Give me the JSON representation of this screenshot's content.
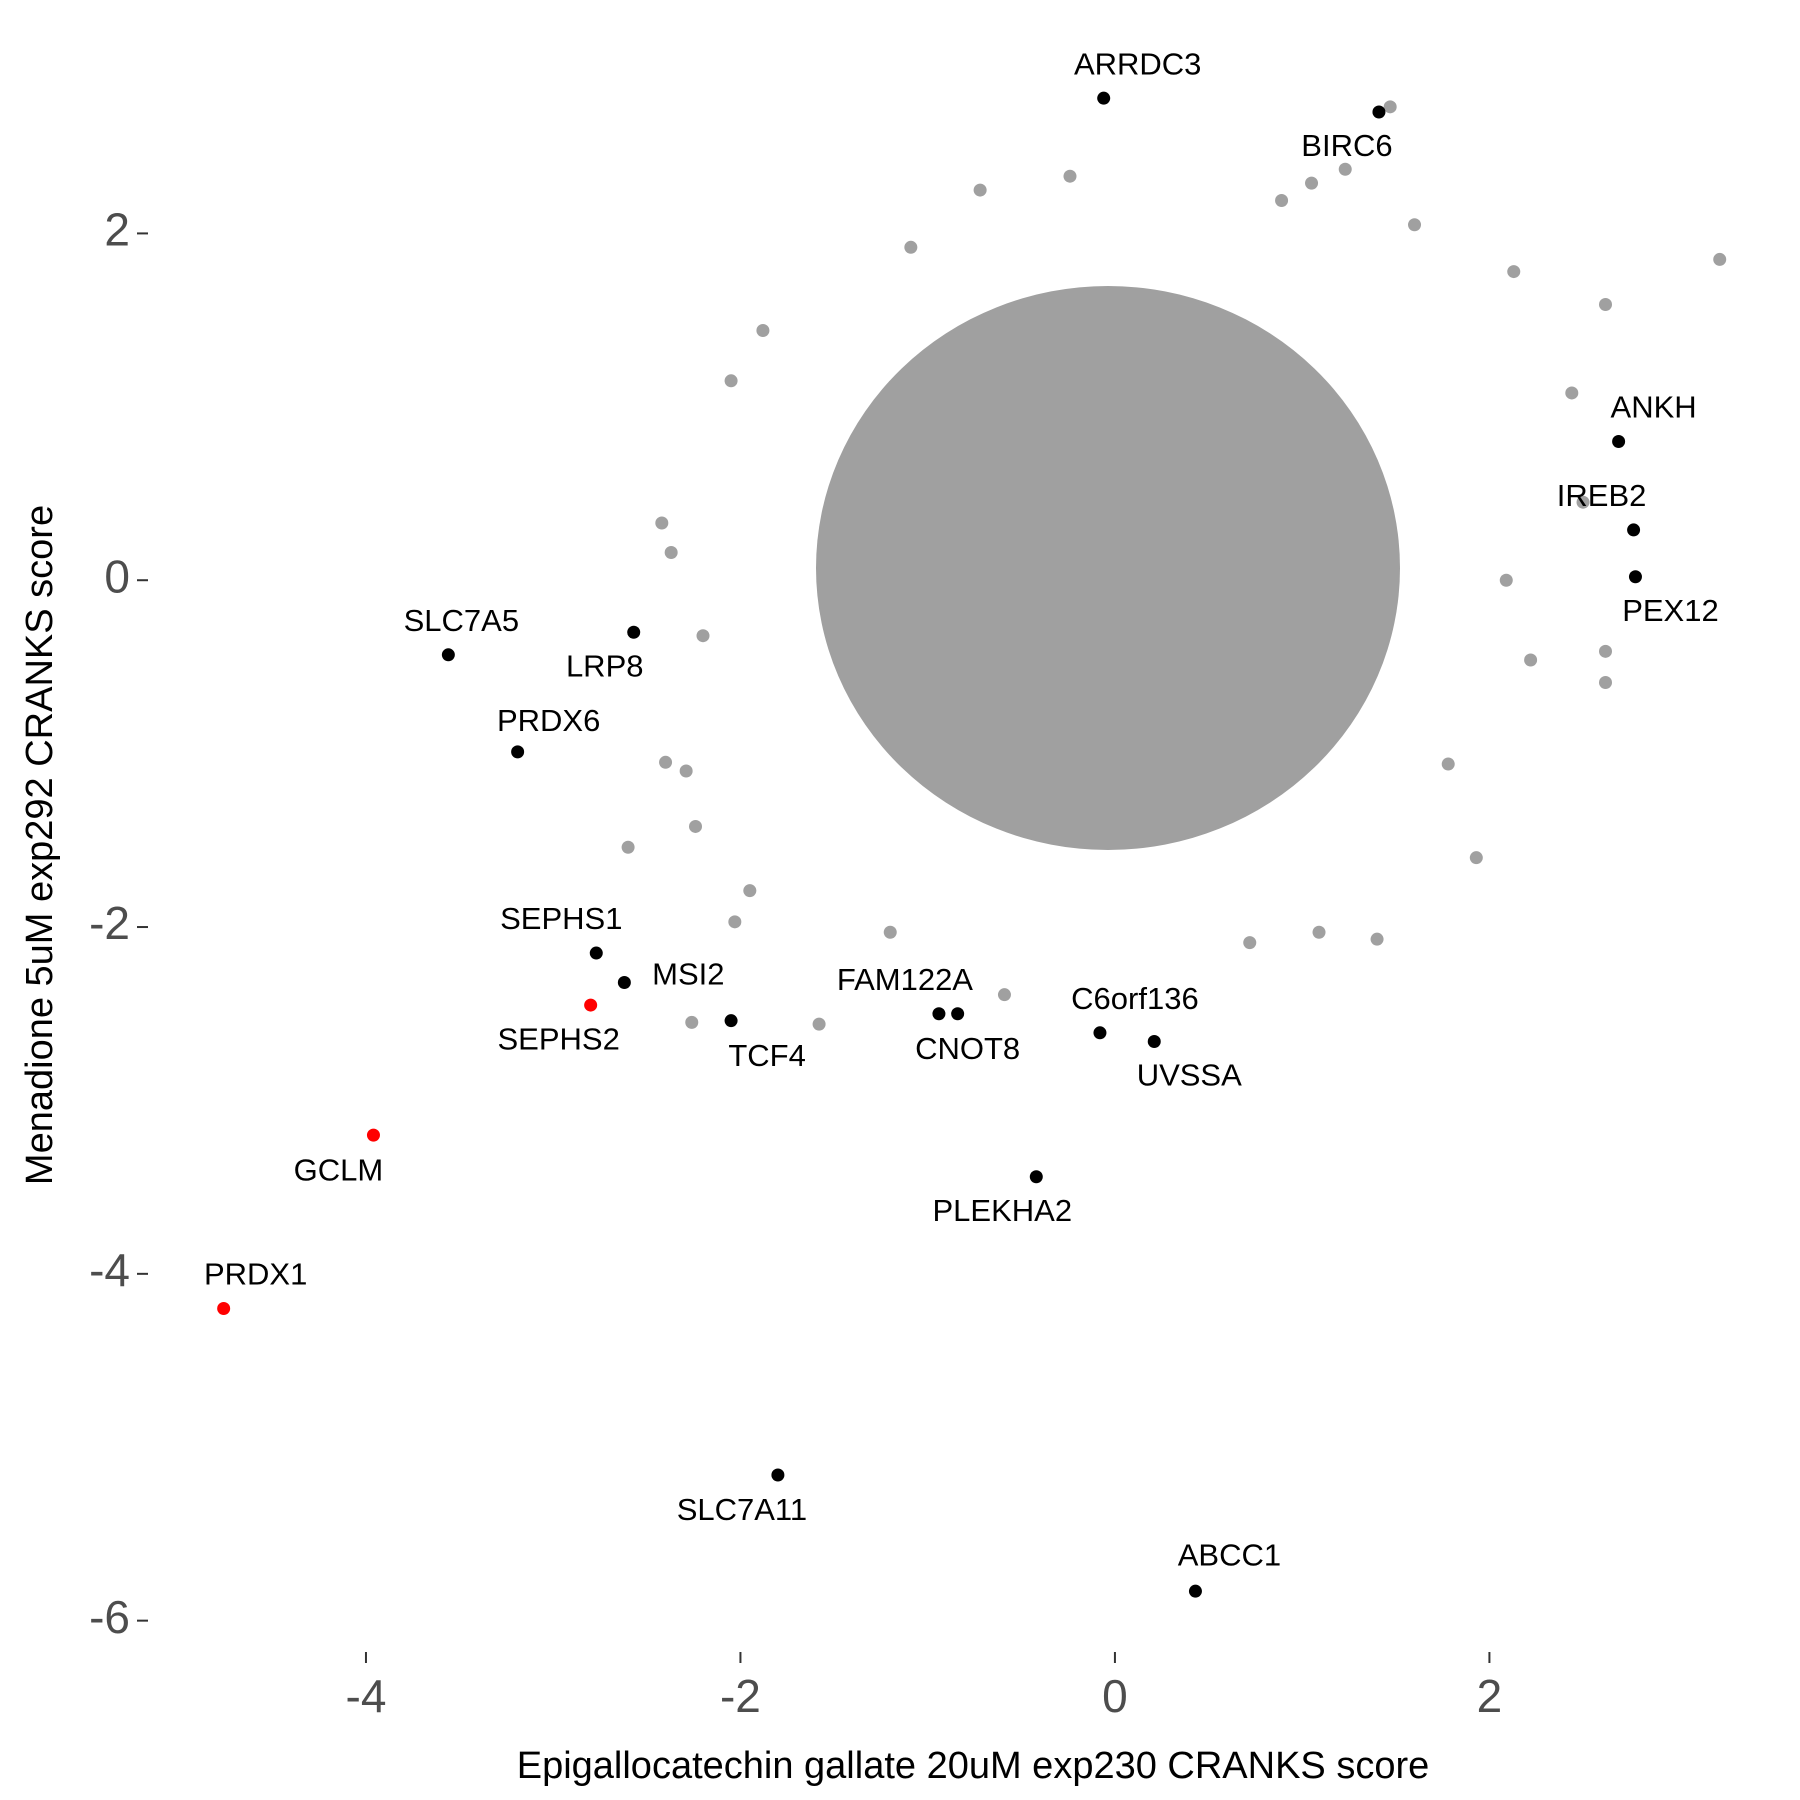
{
  "chart_data": {
    "type": "scatter",
    "x_label": "Epigallocatechin gallate 20uM exp230 CRANKS score",
    "y_label": "Menadione 5uM exp292 CRANKS score",
    "xlim": [
      -5.1,
      3.6
    ],
    "ylim": [
      -6.25,
      3.15
    ],
    "xticks": [
      -4,
      -2,
      0,
      2
    ],
    "yticks": [
      -6,
      -4,
      -2,
      0,
      2
    ],
    "series": [
      {
        "color": "#a0a0a0",
        "x": [
          3.23,
          2.62,
          2.44,
          2.62,
          2.62,
          2.22,
          1.93,
          1.4,
          1.09,
          0.72,
          -0.24,
          -0.72,
          -1.09,
          1.6,
          2.13,
          -1.88,
          -2.05,
          -2.42,
          -2.37,
          -2.2,
          -2.4,
          -2.29,
          -2.24,
          -2.6,
          -1.95,
          -2.03,
          -2.26,
          -1.58,
          -1.2,
          -0.59,
          1.23,
          1.47,
          1.05,
          0.89,
          1.78,
          2.09,
          2.5
        ],
        "y": [
          1.85,
          1.59,
          1.08,
          -0.41,
          -0.59,
          -0.46,
          -1.6,
          -2.07,
          -2.03,
          -2.09,
          2.33,
          2.25,
          1.92,
          2.05,
          1.78,
          1.44,
          1.15,
          0.33,
          0.16,
          -0.32,
          -1.05,
          -1.1,
          -1.42,
          -1.54,
          -1.79,
          -1.97,
          -2.55,
          -2.56,
          -2.03,
          -2.39,
          2.37,
          2.73,
          2.29,
          2.19,
          -1.06,
          0.0,
          0.45
        ]
      },
      {
        "color": "#000000",
        "labels": [
          "ARRDC3",
          "BIRC6",
          "ANKH",
          "IREB2",
          "PEX12",
          "SLC7A5",
          "LRP8",
          "PRDX6",
          "SEPHS1",
          "MSI2",
          "TCF4",
          "FAM122A",
          "CNOT8",
          "C6orf136",
          "UVSSA",
          "PLEKHA2",
          "SLC7A11",
          "ABCC1"
        ],
        "x": [
          -0.06,
          1.41,
          2.69,
          2.77,
          2.78,
          -3.56,
          -2.57,
          -3.19,
          -2.77,
          -2.62,
          -2.05,
          -0.94,
          -0.84,
          -0.08,
          0.21,
          -0.42,
          -1.8,
          0.43
        ],
        "y": [
          2.78,
          2.7,
          0.8,
          0.29,
          0.02,
          -0.43,
          -0.3,
          -0.99,
          -2.15,
          -2.32,
          -2.54,
          -2.5,
          -2.5,
          -2.61,
          -2.66,
          -3.44,
          -5.16,
          -5.83
        ]
      },
      {
        "color": "#ff0000",
        "labels": [
          "SEPHS2",
          "GCLM",
          "PRDX1"
        ],
        "x": [
          -2.8,
          -3.96,
          -4.76
        ],
        "y": [
          -2.45,
          -3.2,
          -4.2
        ]
      }
    ]
  }
}
